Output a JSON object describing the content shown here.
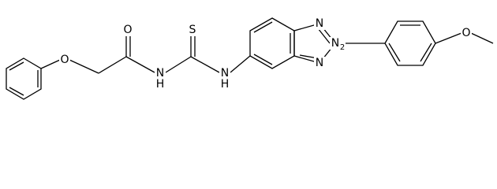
{
  "atoms": [
    {
      "label": "O"
    },
    {
      "label": "O"
    },
    {
      "label": "N"
    },
    {
      "label": "H"
    },
    {
      "label": "S"
    },
    {
      "label": "N"
    },
    {
      "label": "H"
    },
    {
      "label": "N"
    },
    {
      "label": "N"
    },
    {
      "label": "N"
    },
    {
      "label": "2"
    },
    {
      "label": "O"
    }
  ]
}
